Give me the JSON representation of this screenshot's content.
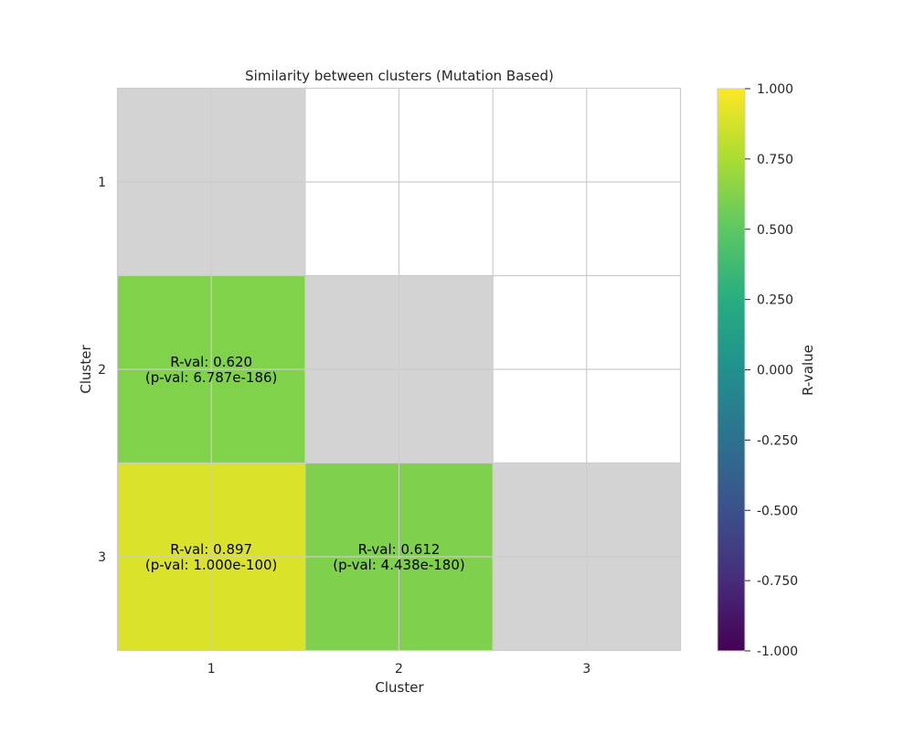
{
  "chart_data": {
    "type": "heatmap",
    "title": "Similarity between clusters (Mutation Based)",
    "xlabel": "Cluster",
    "ylabel": "Cluster",
    "x_tick_labels": [
      "1",
      "2",
      "3"
    ],
    "y_tick_labels": [
      "1",
      "2",
      "3"
    ],
    "cells": [
      {
        "row": 1,
        "col": 0,
        "r": 0.62,
        "line1": "R-val: 0.620",
        "line2": "(p-val: 6.787e-186)"
      },
      {
        "row": 2,
        "col": 0,
        "r": 0.897,
        "line1": "R-val: 0.897",
        "line2": "(p-val: 1.000e-100)"
      },
      {
        "row": 2,
        "col": 1,
        "r": 0.612,
        "line1": "R-val: 0.612",
        "line2": "(p-val: 4.438e-180)"
      }
    ],
    "diagonal_color": "#d3d3d3",
    "upper_triangle": "blank",
    "grid": true,
    "colorbar": {
      "label": "R-value",
      "colormap": "viridis",
      "range": [
        -1,
        1
      ],
      "tick_values": [
        -1,
        -0.75,
        -0.5,
        -0.25,
        0,
        0.25,
        0.5,
        0.75,
        1
      ],
      "tick_labels": [
        "-1.000",
        "-0.750",
        "-0.500",
        "-0.250",
        "0.000",
        "0.250",
        "0.500",
        "0.750",
        "1.000"
      ]
    },
    "colors": {
      "cell_0_620": "#7ad151",
      "cell_0_612": "#7ad151",
      "cell_0_897": "#dde318",
      "grid": "#cccccc",
      "frame": "#cccccc"
    }
  }
}
